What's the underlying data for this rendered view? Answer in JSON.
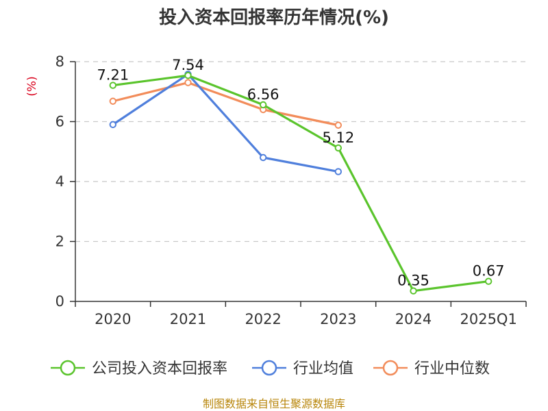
{
  "title": "投入资本回报率历年情况(%)",
  "source": "制图数据来自恒生聚源数据库",
  "colors": {
    "axis": "#333333",
    "grid": "#c8c8c8",
    "company": "#5ac42c",
    "industry_avg": "#4f7fdc",
    "industry_median": "#f28c5a",
    "ylabel": "#d9001b",
    "source": "#b8860b"
  },
  "chart_data": {
    "type": "line",
    "title": "投入资本回报率历年情况(%)",
    "xlabel": "",
    "ylabel": "(%)",
    "ylim": [
      0,
      8
    ],
    "yticks": [
      "0",
      "2",
      "4",
      "6",
      "8"
    ],
    "grid": true,
    "categories": [
      "2020",
      "2021",
      "2022",
      "2023",
      "2024",
      "2025Q1"
    ],
    "series": [
      {
        "name": "公司投入资本回报率",
        "key": "company",
        "values": [
          7.21,
          7.54,
          6.56,
          5.12,
          0.35,
          0.67
        ],
        "labels": [
          "7.21",
          "7.54",
          "6.56",
          "5.12",
          "0.35",
          "0.67"
        ]
      },
      {
        "name": "行业均值",
        "key": "industry_avg",
        "values": [
          5.9,
          7.58,
          4.8,
          4.33,
          null,
          null
        ]
      },
      {
        "name": "行业中位数",
        "key": "industry_median",
        "values": [
          6.68,
          7.3,
          6.4,
          5.88,
          null,
          null
        ]
      }
    ],
    "legend_position": "bottom"
  }
}
